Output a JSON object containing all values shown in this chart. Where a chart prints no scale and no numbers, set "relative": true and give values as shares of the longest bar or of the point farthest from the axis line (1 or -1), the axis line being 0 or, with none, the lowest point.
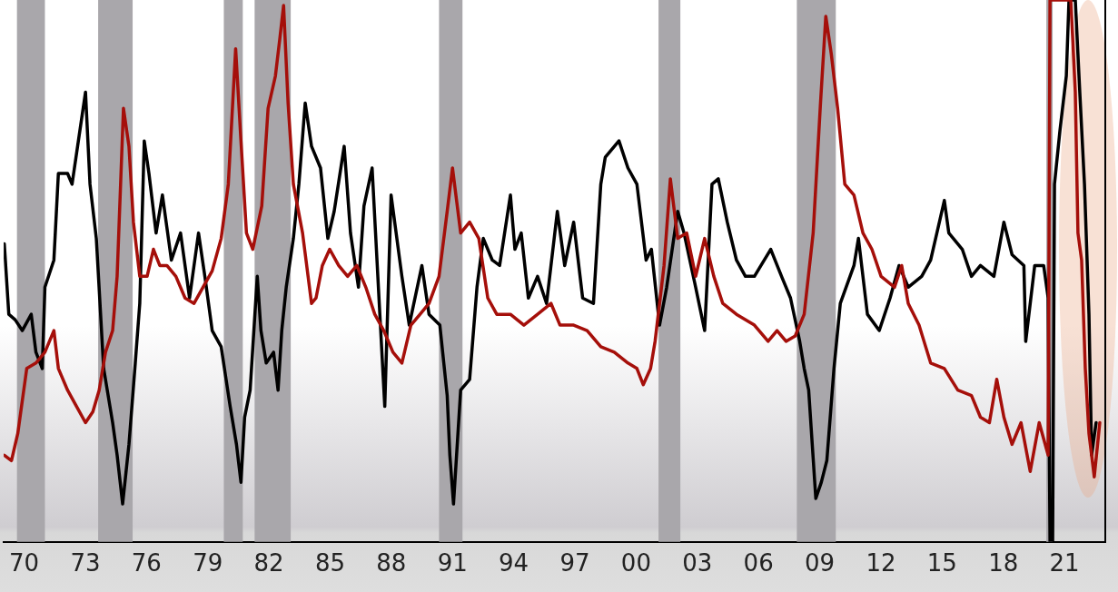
{
  "chart_data": {
    "type": "line",
    "relative": true,
    "grid": false,
    "legend": false,
    "marker": "none",
    "line_style": "solid",
    "tick_labels": "x",
    "xlim": [
      1969,
      2023
    ],
    "xticks": [
      {
        "value": 1970,
        "label": "70"
      },
      {
        "value": 1973,
        "label": "73"
      },
      {
        "value": 1976,
        "label": "76"
      },
      {
        "value": 1979,
        "label": "79"
      },
      {
        "value": 1982,
        "label": "82"
      },
      {
        "value": 1985,
        "label": "85"
      },
      {
        "value": 1988,
        "label": "88"
      },
      {
        "value": 1991,
        "label": "91"
      },
      {
        "value": 1994,
        "label": "94"
      },
      {
        "value": 1997,
        "label": "97"
      },
      {
        "value": 2000,
        "label": "00"
      },
      {
        "value": 2003,
        "label": "03"
      },
      {
        "value": 2006,
        "label": "06"
      },
      {
        "value": 2009,
        "label": "09"
      },
      {
        "value": 2012,
        "label": "12"
      },
      {
        "value": 2015,
        "label": "15"
      },
      {
        "value": 2018,
        "label": "18"
      },
      {
        "value": 2021,
        "label": "21"
      }
    ],
    "bands": [
      {
        "axis": "x",
        "from": 1969.65,
        "to": 1971.02,
        "color": "#a9a7ab"
      },
      {
        "axis": "x",
        "from": 1973.63,
        "to": 1975.32,
        "color": "#a9a7ab"
      },
      {
        "axis": "x",
        "from": 1979.79,
        "to": 1980.72,
        "color": "#a9a7ab"
      },
      {
        "axis": "x",
        "from": 1981.3,
        "to": 1983.07,
        "color": "#a9a7ab"
      },
      {
        "axis": "x",
        "from": 1990.34,
        "to": 1991.49,
        "color": "#a9a7ab"
      },
      {
        "axis": "x",
        "from": 2001.1,
        "to": 2002.17,
        "color": "#a9a7ab"
      },
      {
        "axis": "x",
        "from": 2007.88,
        "to": 2009.79,
        "color": "#a9a7ab"
      },
      {
        "axis": "x",
        "from": 2020.11,
        "to": 2020.42,
        "color": "#a9a7ab"
      }
    ],
    "series": [
      {
        "color": "#a50f0a",
        "x": [
          1969.03,
          1969.38,
          1969.69,
          1970.13,
          1970.58,
          1971.02,
          1971.46,
          1971.68,
          1972.13,
          1972.57,
          1973.01,
          1973.37,
          1973.68,
          1973.99,
          1974.34,
          1974.56,
          1974.87,
          1975.14,
          1975.36,
          1975.67,
          1976.03,
          1976.34,
          1976.65,
          1977.0,
          1977.44,
          1977.89,
          1978.33,
          1978.77,
          1979.22,
          1979.66,
          1980.01,
          1980.37,
          1980.63,
          1980.9,
          1981.21,
          1981.65,
          1981.96,
          1982.32,
          1982.54,
          1982.72,
          1982.94,
          1983.2,
          1983.65,
          1984.09,
          1984.31,
          1984.62,
          1984.98,
          1985.42,
          1985.86,
          1986.31,
          1986.75,
          1987.19,
          1987.63,
          1988.08,
          1988.52,
          1988.96,
          1989.41,
          1989.85,
          1990.34,
          1990.74,
          1991.0,
          1991.4,
          1991.84,
          1992.29,
          1992.73,
          1993.17,
          1993.84,
          1994.5,
          1995.17,
          1995.83,
          1996.27,
          1996.94,
          1997.6,
          1998.27,
          1998.93,
          1999.6,
          2000.04,
          2000.35,
          2000.71,
          2000.93,
          2001.37,
          2001.68,
          2002.04,
          2002.48,
          2002.92,
          2003.36,
          2003.81,
          2004.25,
          2004.92,
          2005.8,
          2006.47,
          2006.91,
          2007.35,
          2007.8,
          2008.24,
          2008.68,
          2009.04,
          2009.3,
          2009.57,
          2009.88,
          2010.23,
          2010.68,
          2011.12,
          2011.56,
          2012.01,
          2012.67,
          2013.02,
          2013.34,
          2013.87,
          2014.44,
          2015.11,
          2015.77,
          2016.44,
          2016.88,
          2017.32,
          2017.68,
          2018.03,
          2018.43,
          2018.87,
          2019.32,
          2019.76,
          2020.2,
          2020.29,
          2021.31,
          2021.53,
          2021.66,
          2021.84,
          2022.02,
          2022.2,
          2022.33,
          2022.46,
          2022.73
        ],
        "values": [
          0.16,
          0.15,
          0.2,
          0.32,
          0.33,
          0.35,
          0.39,
          0.32,
          0.28,
          0.25,
          0.22,
          0.24,
          0.28,
          0.35,
          0.39,
          0.49,
          0.8,
          0.73,
          0.59,
          0.49,
          0.49,
          0.54,
          0.51,
          0.51,
          0.49,
          0.45,
          0.44,
          0.47,
          0.5,
          0.56,
          0.66,
          0.91,
          0.74,
          0.57,
          0.54,
          0.62,
          0.8,
          0.86,
          0.93,
          0.99,
          0.81,
          0.66,
          0.57,
          0.44,
          0.45,
          0.51,
          0.54,
          0.51,
          0.49,
          0.51,
          0.47,
          0.42,
          0.39,
          0.35,
          0.33,
          0.4,
          0.42,
          0.44,
          0.49,
          0.61,
          0.69,
          0.57,
          0.59,
          0.56,
          0.45,
          0.42,
          0.42,
          0.4,
          0.42,
          0.44,
          0.4,
          0.4,
          0.39,
          0.36,
          0.35,
          0.33,
          0.32,
          0.29,
          0.32,
          0.37,
          0.51,
          0.67,
          0.56,
          0.57,
          0.49,
          0.56,
          0.49,
          0.44,
          0.42,
          0.4,
          0.37,
          0.39,
          0.37,
          0.38,
          0.42,
          0.57,
          0.81,
          0.97,
          0.9,
          0.8,
          0.66,
          0.64,
          0.57,
          0.54,
          0.49,
          0.47,
          0.51,
          0.44,
          0.4,
          0.33,
          0.32,
          0.28,
          0.27,
          0.23,
          0.22,
          0.3,
          0.23,
          0.18,
          0.22,
          0.13,
          0.22,
          0.16,
          1,
          1,
          0.83,
          0.57,
          0.52,
          0.32,
          0.2,
          0.16,
          0.12,
          0.22
        ]
      },
      {
        "color": "#000000",
        "x": [
          1969.03,
          1969.25,
          1969.56,
          1969.91,
          1970.35,
          1970.58,
          1970.89,
          1971.02,
          1971.46,
          1971.68,
          1972.13,
          1972.35,
          1972.66,
          1973.01,
          1973.23,
          1973.54,
          1973.9,
          1974.34,
          1974.56,
          1974.83,
          1975.14,
          1975.45,
          1975.67,
          1975.89,
          1976.12,
          1976.47,
          1976.78,
          1977.22,
          1977.67,
          1978.11,
          1978.55,
          1978.86,
          1979.22,
          1979.66,
          1980.1,
          1980.41,
          1980.63,
          1980.81,
          1981.08,
          1981.43,
          1981.61,
          1981.87,
          1982.23,
          1982.45,
          1982.63,
          1982.85,
          1983.2,
          1983.47,
          1983.78,
          1984.09,
          1984.53,
          1984.89,
          1985.2,
          1985.69,
          1986.0,
          1986.39,
          1986.66,
          1987.06,
          1987.41,
          1987.68,
          1987.99,
          1988.52,
          1988.88,
          1989.5,
          1989.85,
          1990.38,
          1990.74,
          1990.87,
          1991.05,
          1991.4,
          1991.84,
          1992.2,
          1992.51,
          1992.95,
          1993.31,
          1993.84,
          1994.06,
          1994.37,
          1994.72,
          1995.17,
          1995.61,
          1996.14,
          1996.5,
          1996.94,
          1997.38,
          1997.91,
          1998.27,
          1998.49,
          1999.16,
          1999.6,
          2000.04,
          2000.49,
          2000.75,
          2001.15,
          2001.5,
          2002.04,
          2002.35,
          2002.92,
          2003.36,
          2003.72,
          2004.03,
          2004.47,
          2004.92,
          2005.36,
          2005.8,
          2006.6,
          2007.13,
          2007.57,
          2008.02,
          2008.24,
          2008.46,
          2008.81,
          2009.08,
          2009.35,
          2009.7,
          2010.01,
          2010.68,
          2010.9,
          2011.34,
          2011.92,
          2012.45,
          2012.89,
          2013.34,
          2014.0,
          2014.44,
          2015.11,
          2015.33,
          2015.99,
          2016.44,
          2016.88,
          2017.54,
          2018.03,
          2018.43,
          2019.01,
          2019.1,
          2019.54,
          2019.98,
          2020.2,
          2020.29,
          2020.42,
          2020.51,
          2020.78,
          2021.09,
          2021.22,
          2021.53,
          2021.75,
          2021.98,
          2022.2,
          2022.33,
          2022.55
        ],
        "values": [
          0.55,
          0.42,
          0.41,
          0.39,
          0.42,
          0.35,
          0.32,
          0.47,
          0.52,
          0.68,
          0.68,
          0.66,
          0.74,
          0.83,
          0.66,
          0.56,
          0.32,
          0.22,
          0.16,
          0.07,
          0.18,
          0.33,
          0.44,
          0.74,
          0.68,
          0.57,
          0.64,
          0.52,
          0.57,
          0.45,
          0.57,
          0.49,
          0.39,
          0.36,
          0.25,
          0.18,
          0.11,
          0.23,
          0.28,
          0.49,
          0.39,
          0.33,
          0.35,
          0.28,
          0.39,
          0.47,
          0.56,
          0.66,
          0.81,
          0.73,
          0.69,
          0.56,
          0.61,
          0.73,
          0.57,
          0.47,
          0.62,
          0.69,
          0.44,
          0.25,
          0.64,
          0.49,
          0.4,
          0.51,
          0.42,
          0.4,
          0.27,
          0.16,
          0.07,
          0.28,
          0.3,
          0.47,
          0.56,
          0.52,
          0.51,
          0.64,
          0.54,
          0.57,
          0.45,
          0.49,
          0.44,
          0.61,
          0.51,
          0.59,
          0.45,
          0.44,
          0.66,
          0.71,
          0.74,
          0.69,
          0.66,
          0.52,
          0.54,
          0.4,
          0.47,
          0.61,
          0.57,
          0.47,
          0.39,
          0.66,
          0.67,
          0.59,
          0.52,
          0.49,
          0.49,
          0.54,
          0.49,
          0.45,
          0.37,
          0.32,
          0.28,
          0.08,
          0.11,
          0.15,
          0.32,
          0.44,
          0.51,
          0.56,
          0.42,
          0.39,
          0.45,
          0.51,
          0.47,
          0.49,
          0.52,
          0.63,
          0.57,
          0.54,
          0.49,
          0.51,
          0.49,
          0.59,
          0.53,
          0.51,
          0.37,
          0.51,
          0.51,
          0.45,
          0,
          0,
          0.66,
          0.76,
          0.86,
          1,
          1,
          0.83,
          0.66,
          0.42,
          0.16,
          0.22
        ]
      }
    ]
  }
}
